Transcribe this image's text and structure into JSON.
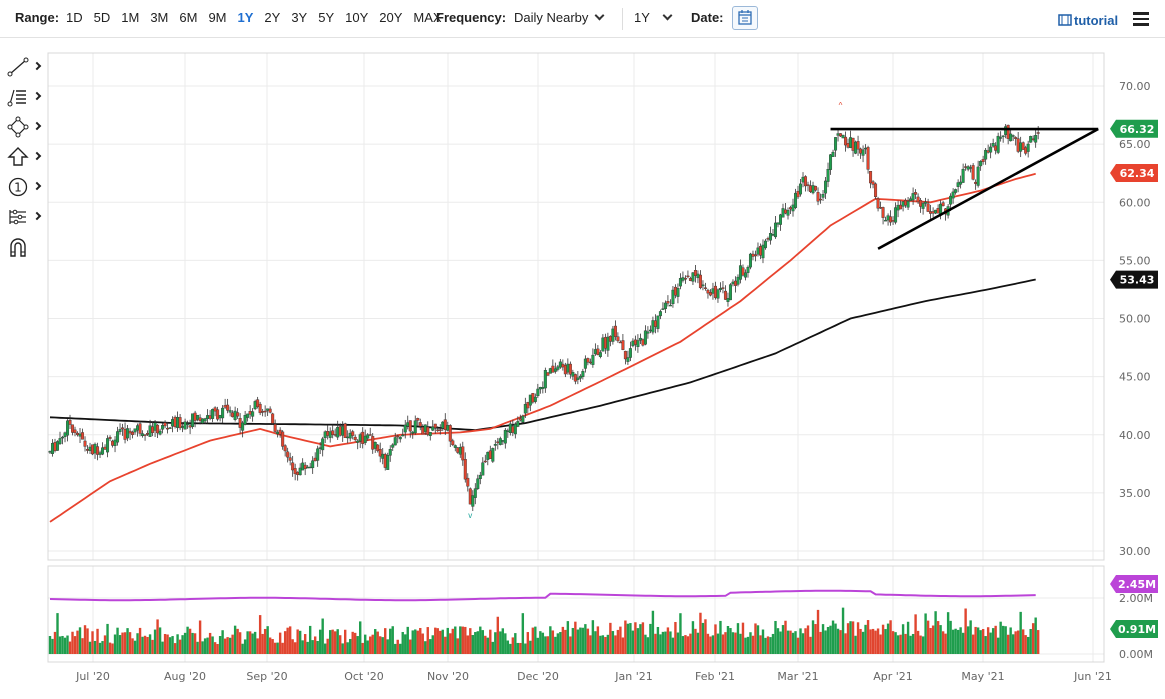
{
  "toolbar": {
    "range_label": "Range:",
    "ranges": [
      "1D",
      "5D",
      "1M",
      "3M",
      "6M",
      "9M",
      "1Y",
      "2Y",
      "3Y",
      "5Y",
      "10Y",
      "20Y",
      "MAX"
    ],
    "active_range": "1Y",
    "frequency_label": "Frequency:",
    "frequency_value": "Daily Nearby",
    "period_value": "1Y",
    "date_label": "Date:",
    "tutorial_label": "tutorial"
  },
  "tools": [
    "line-tool-icon",
    "fibonacci-tool-icon",
    "shape-tool-icon",
    "arrow-tool-icon",
    "annotation-tool-icon",
    "measure-tool-icon",
    "magnet-tool-icon"
  ],
  "colors": {
    "up": "#1f9d4d",
    "down": "#e0452f",
    "ma50": "#e8432e",
    "ma200": "#111111",
    "volume_avg": "#bb44d8",
    "badge_price": "#1f9d4d",
    "badge_ma50": "#e8432e",
    "badge_ma200": "#111111",
    "badge_vavg": "#bb44d8",
    "badge_vol": "#1f9d4d"
  },
  "chart_data": {
    "type": "candlestick",
    "x_labels": [
      "Jul '20",
      "Aug '20",
      "Sep '20",
      "Oct '20",
      "Nov '20",
      "Dec '20",
      "Jan '21",
      "Feb '21",
      "Mar '21",
      "Apr '21",
      "May '21",
      "Jun '21"
    ],
    "y_ticks": [
      "70.00",
      "65.00",
      "60.00",
      "55.00",
      "50.00",
      "45.00",
      "40.00",
      "35.00",
      "30.00"
    ],
    "ylim": [
      30,
      70
    ],
    "volume_ticks": [
      "2.00M",
      "0.00M"
    ],
    "price_path": [
      [
        0,
        38.5
      ],
      [
        8,
        41
      ],
      [
        16,
        38.5
      ],
      [
        24,
        39.5
      ],
      [
        34,
        40.5
      ],
      [
        44,
        40.5
      ],
      [
        52,
        41
      ],
      [
        60,
        41.5
      ],
      [
        70,
        42
      ],
      [
        76,
        41.2
      ],
      [
        83,
        42.6
      ],
      [
        88,
        42
      ],
      [
        92,
        39.5
      ],
      [
        97,
        36.8
      ],
      [
        104,
        37.5
      ],
      [
        112,
        40.5
      ],
      [
        120,
        40
      ],
      [
        128,
        39.5
      ],
      [
        134,
        37.5
      ],
      [
        142,
        41
      ],
      [
        150,
        40.5
      ],
      [
        158,
        40.8
      ],
      [
        164,
        38.5
      ],
      [
        168,
        34.5
      ],
      [
        172,
        37
      ],
      [
        178,
        39
      ],
      [
        186,
        41
      ],
      [
        192,
        43
      ],
      [
        198,
        45
      ],
      [
        204,
        46
      ],
      [
        210,
        45
      ],
      [
        216,
        46.5
      ],
      [
        222,
        48
      ],
      [
        226,
        49
      ],
      [
        230,
        47
      ],
      [
        236,
        48
      ],
      [
        241,
        49.5
      ],
      [
        246,
        51
      ],
      [
        252,
        53
      ],
      [
        258,
        53.5
      ],
      [
        264,
        52.5
      ],
      [
        270,
        52
      ],
      [
        276,
        54
      ],
      [
        284,
        56
      ],
      [
        290,
        58
      ],
      [
        296,
        60
      ],
      [
        302,
        62
      ],
      [
        308,
        60
      ],
      [
        312,
        64
      ],
      [
        316,
        66
      ],
      [
        320,
        65
      ],
      [
        326,
        64.5
      ],
      [
        330,
        60
      ],
      [
        334,
        58
      ],
      [
        340,
        59.5
      ],
      [
        346,
        60.5
      ],
      [
        352,
        59
      ],
      [
        358,
        59.5
      ],
      [
        362,
        61
      ],
      [
        366,
        63
      ],
      [
        370,
        62
      ],
      [
        374,
        64
      ],
      [
        378,
        65
      ],
      [
        382,
        66
      ],
      [
        386,
        65
      ],
      [
        390,
        64.5
      ],
      [
        395,
        66.3
      ]
    ],
    "ma50_path": [
      [
        0,
        32.5
      ],
      [
        24,
        36
      ],
      [
        40,
        37.5
      ],
      [
        64,
        39.5
      ],
      [
        84,
        40.5
      ],
      [
        92,
        40
      ],
      [
        112,
        39
      ],
      [
        140,
        40
      ],
      [
        164,
        40.2
      ],
      [
        176,
        40.5
      ],
      [
        200,
        42.5
      ],
      [
        224,
        45
      ],
      [
        252,
        48
      ],
      [
        276,
        51.5
      ],
      [
        296,
        55
      ],
      [
        312,
        58
      ],
      [
        330,
        60.3
      ],
      [
        352,
        60
      ],
      [
        372,
        61
      ],
      [
        386,
        62
      ],
      [
        395,
        62.5
      ]
    ],
    "ma200_path": [
      [
        0,
        41.5
      ],
      [
        50,
        41
      ],
      [
        100,
        40.9
      ],
      [
        140,
        40.8
      ],
      [
        170,
        40.4
      ],
      [
        190,
        41
      ],
      [
        220,
        42.5
      ],
      [
        256,
        44.5
      ],
      [
        290,
        47
      ],
      [
        320,
        50
      ],
      [
        350,
        51.5
      ],
      [
        375,
        52.5
      ],
      [
        395,
        53.4
      ]
    ],
    "trendlines": [
      {
        "name": "resistance",
        "from": [
          312,
          66.3
        ],
        "to": [
          419,
          66.3
        ]
      },
      {
        "name": "support",
        "from": [
          331,
          56
        ],
        "to": [
          419,
          66.3
        ]
      }
    ],
    "high_marker": 68.2,
    "low_marker": 33.2,
    "last_price": "66.32",
    "ma50_last": "62.34",
    "ma200_last": "53.43",
    "volume_avg_last": "2.45M",
    "volume_last": "0.91M"
  }
}
